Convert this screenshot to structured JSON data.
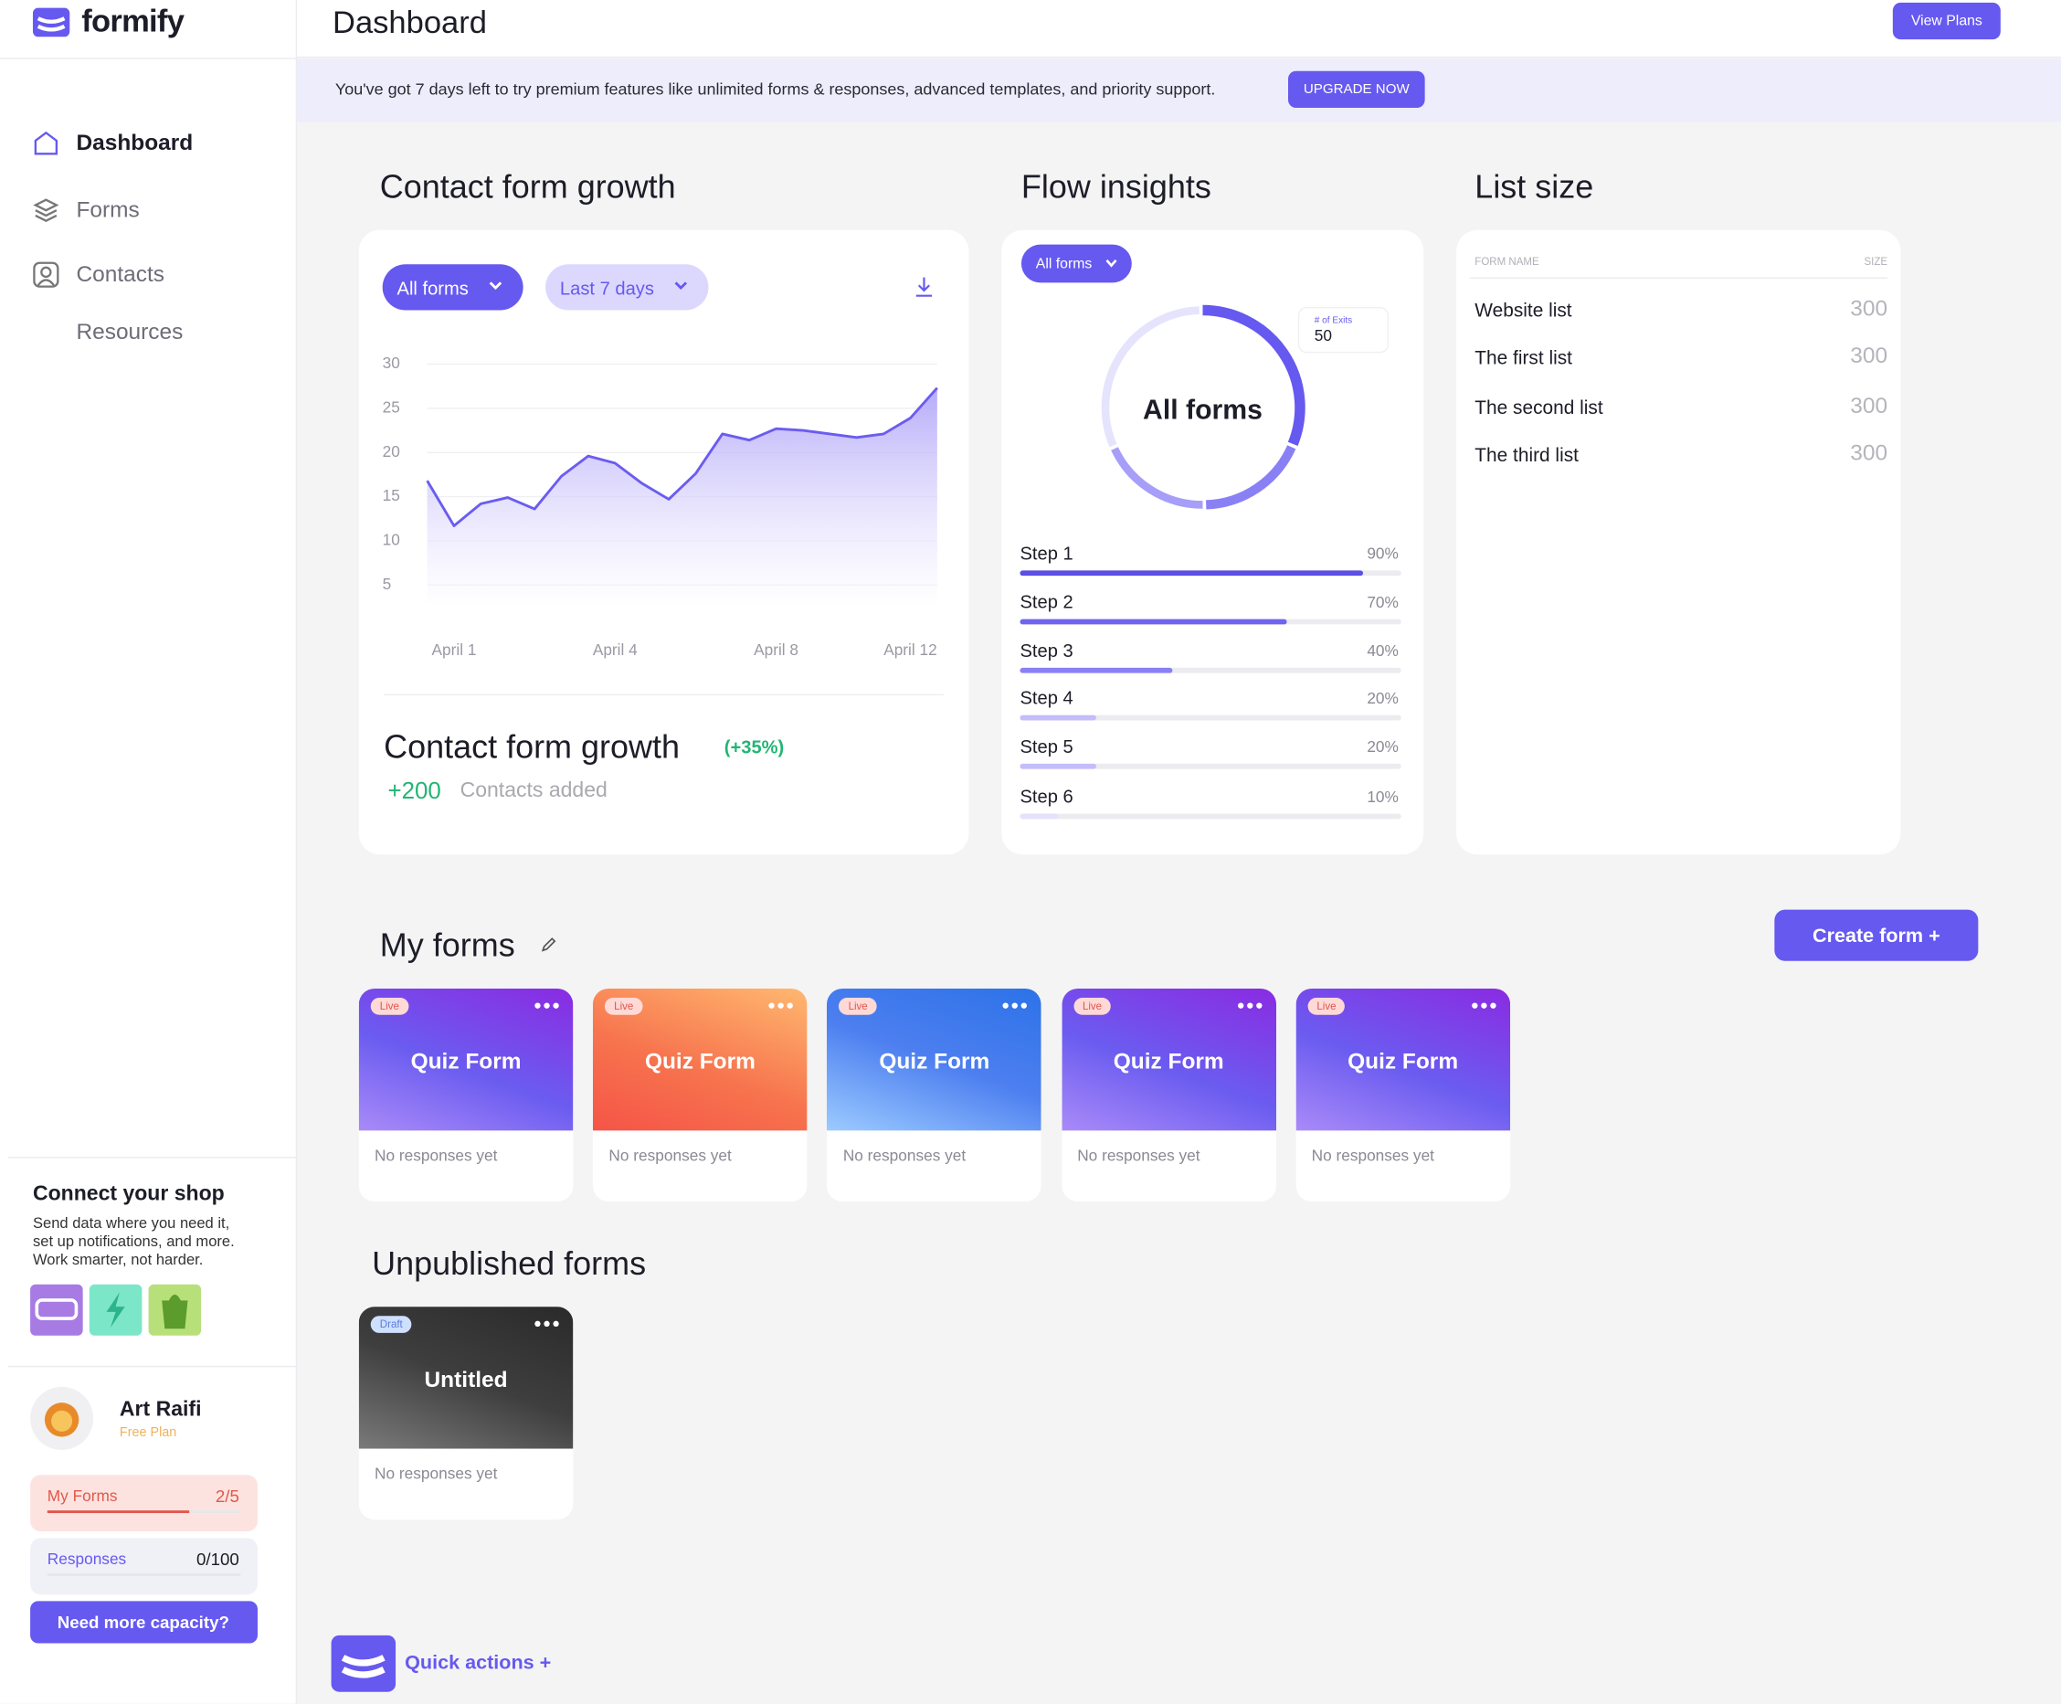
{
  "sidebar": {
    "brand": "formify",
    "nav": [
      "Dashboard",
      "Forms",
      "Contacts",
      "Resources"
    ],
    "shop": {
      "title": "Connect your shop",
      "text": [
        "Send data where you need it,",
        "set up notifications, and more.",
        "Work smarter, not harder."
      ]
    },
    "user": {
      "name": "Art Raifi",
      "plan": "Free Plan"
    },
    "usage": [
      {
        "label": "My Forms",
        "count": "2/5"
      },
      {
        "label": "Responses",
        "count": "0/100"
      }
    ],
    "cta": "Need more capacity?"
  },
  "header": {
    "title": "Dashboard",
    "button": "View Plans"
  },
  "banner": {
    "text": "You've got 7 days left to try premium features like unlimited forms & responses, advanced templates, and priority support.",
    "button": "UPGRADE NOW"
  },
  "growth": {
    "filters": [
      "All forms",
      "Last 7 days"
    ],
    "summary_title": "Contact form growth",
    "change": "(+35%)",
    "added": "+200",
    "added_label": "Contacts added"
  },
  "flow": {
    "title": "Flow insights",
    "filter": "All forms",
    "donut_label": "All forms",
    "exits_label": "# of Exits",
    "exits": 50
  },
  "list_size": {
    "title": "List size",
    "columns": [
      "FORM NAME",
      "SIZE"
    ],
    "rows": [
      [
        "Website list",
        300
      ],
      [
        "The first list",
        300
      ],
      [
        "The second list",
        300
      ],
      [
        "The third list",
        300
      ]
    ]
  },
  "my_forms": {
    "title": "My forms",
    "button": "Create form +",
    "forms": [
      {
        "badge": "Live",
        "title": "Quiz Form",
        "status": "No responses yet"
      },
      {
        "badge": "Live",
        "title": "Quiz Form",
        "status": "No responses yet"
      },
      {
        "badge": "Live",
        "title": "Quiz Form",
        "status": "No responses yet"
      },
      {
        "badge": "Live",
        "title": "Quiz Form",
        "status": "No responses yet"
      },
      {
        "badge": "Live",
        "title": "Quiz Form",
        "status": "No responses yet"
      }
    ]
  },
  "unpublished": {
    "title": "Unpublished forms",
    "forms": [
      {
        "badge": "Draft",
        "title": "Untitled",
        "status": "No responses yet"
      }
    ]
  },
  "quick_actions": "Quick actions +",
  "chart_data": [
    {
      "type": "area",
      "title": "Contact form growth",
      "categories": [
        null,
        "April 1",
        null,
        null,
        null,
        null,
        null,
        "April 4",
        null,
        null,
        null,
        null,
        null,
        "April 8",
        null,
        null,
        null,
        null,
        "April 12",
        null
      ],
      "values": [
        16.8,
        11.7,
        14.2,
        14.9,
        13.6,
        17.3,
        19.6,
        18.8,
        16.5,
        14.7,
        17.6,
        22.1,
        21.4,
        22.7,
        22.5,
        22.1,
        21.7,
        22.1,
        23.9,
        27.3
      ],
      "color": "#6b5cf0",
      "ylim": [
        2.5,
        30
      ],
      "yticks": [
        5,
        10,
        15,
        20,
        25,
        30
      ],
      "grid": true
    },
    {
      "type": "bar",
      "orientation": "horizontal",
      "categories": [
        "Step 1",
        "Step 2",
        "Step 3",
        "Step 4",
        "Step 5",
        "Step 6"
      ],
      "values": [
        90,
        70,
        40,
        20,
        20,
        10
      ],
      "value_labels": [
        "90%",
        "70%",
        "40%",
        "20%",
        "20%",
        "10%"
      ],
      "colors": [
        "#5b4fe6",
        "#6f63f0",
        "#8a80f5",
        "#c3bdfa",
        "#c3bdfa",
        "#e4e1fd"
      ],
      "xlim": [
        0,
        100
      ]
    }
  ]
}
